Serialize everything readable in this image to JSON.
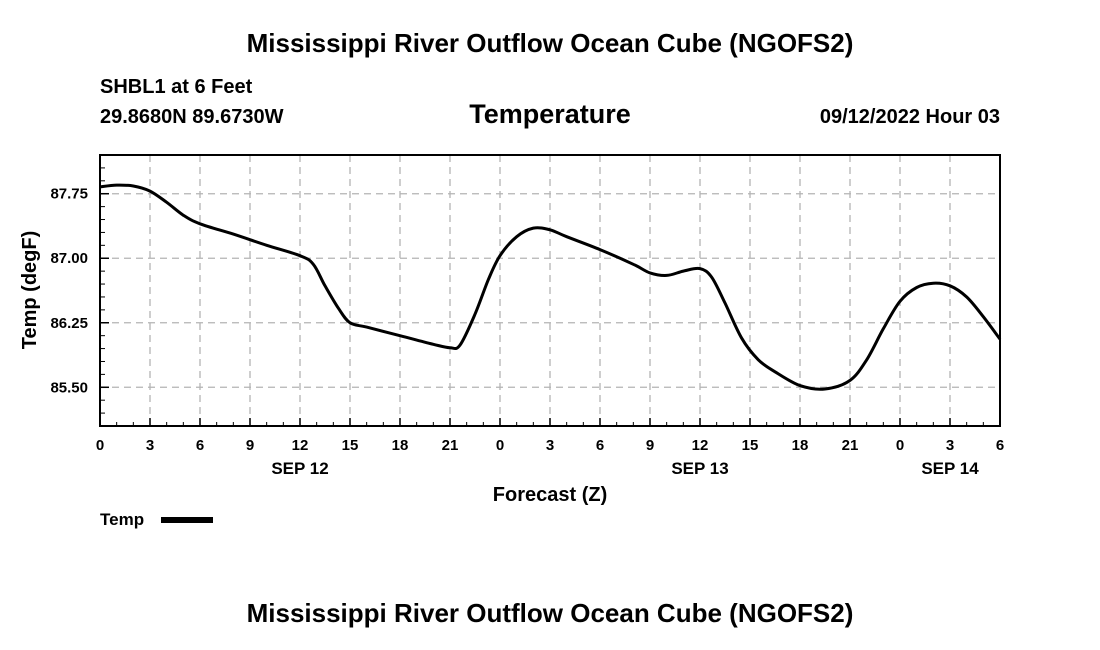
{
  "header": {
    "title": "Mississippi River Outflow Ocean Cube (NGOFS2)",
    "station": "SHBL1 at 6 Feet",
    "coords": "29.8680N  89.6730W",
    "variable": "Temperature",
    "timestamp": "09/12/2022 Hour 03"
  },
  "footer": {
    "title": "Mississippi River Outflow Ocean Cube (NGOFS2)"
  },
  "legend": {
    "label": "Temp"
  },
  "colors": {
    "line": "#000000",
    "grid": "#b4b4b4",
    "background": "#ffffff"
  },
  "chart_data": {
    "type": "line",
    "title": "Temperature",
    "xlabel": "Forecast (Z)",
    "ylabel": "Temp (degF)",
    "x_unit": "hours since 2022-09-12 00Z",
    "xlim": [
      0,
      54
    ],
    "ylim": [
      85.05,
      88.2
    ],
    "yticks": [
      85.5,
      86.25,
      87.0,
      87.75
    ],
    "ytick_labels": [
      "85.50",
      "86.25",
      "87.00",
      "87.75"
    ],
    "minor_ytick_step": 0.15,
    "xticks": [
      0,
      3,
      6,
      9,
      12,
      15,
      18,
      21,
      24,
      27,
      30,
      33,
      36,
      39,
      42,
      45,
      48,
      51,
      54
    ],
    "xtick_labels": [
      "0",
      "3",
      "6",
      "9",
      "12",
      "15",
      "18",
      "21",
      "0",
      "3",
      "6",
      "9",
      "12",
      "15",
      "18",
      "21",
      "0",
      "3",
      "6"
    ],
    "date_labels": [
      {
        "x": 12,
        "label": "SEP 12"
      },
      {
        "x": 36,
        "label": "SEP 13"
      },
      {
        "x": 51,
        "label": "SEP 14"
      }
    ],
    "grid": true,
    "legend_position": "bottom-left",
    "series": [
      {
        "name": "Temp",
        "x": [
          0,
          1,
          2,
          3,
          4,
          5,
          6,
          8,
          10,
          12,
          12.8,
          13.5,
          14.3,
          15,
          16,
          18,
          20,
          21,
          21.6,
          22.5,
          23.3,
          24,
          25,
          26,
          27,
          28,
          30,
          32,
          33,
          34,
          35,
          36,
          36.7,
          37.5,
          38.5,
          39.5,
          40.5,
          42,
          43.5,
          45,
          46,
          47,
          48,
          49,
          50,
          51,
          52,
          53,
          54
        ],
        "y": [
          87.83,
          87.85,
          87.84,
          87.78,
          87.65,
          87.5,
          87.4,
          87.28,
          87.15,
          87.03,
          86.93,
          86.68,
          86.42,
          86.25,
          86.2,
          86.1,
          86.0,
          85.96,
          85.99,
          86.35,
          86.75,
          87.03,
          87.25,
          87.35,
          87.33,
          87.25,
          87.1,
          86.93,
          86.83,
          86.8,
          86.85,
          86.88,
          86.78,
          86.48,
          86.07,
          85.82,
          85.68,
          85.52,
          85.48,
          85.58,
          85.82,
          86.18,
          86.5,
          86.66,
          86.71,
          86.68,
          86.55,
          86.32,
          86.06
        ]
      }
    ]
  }
}
